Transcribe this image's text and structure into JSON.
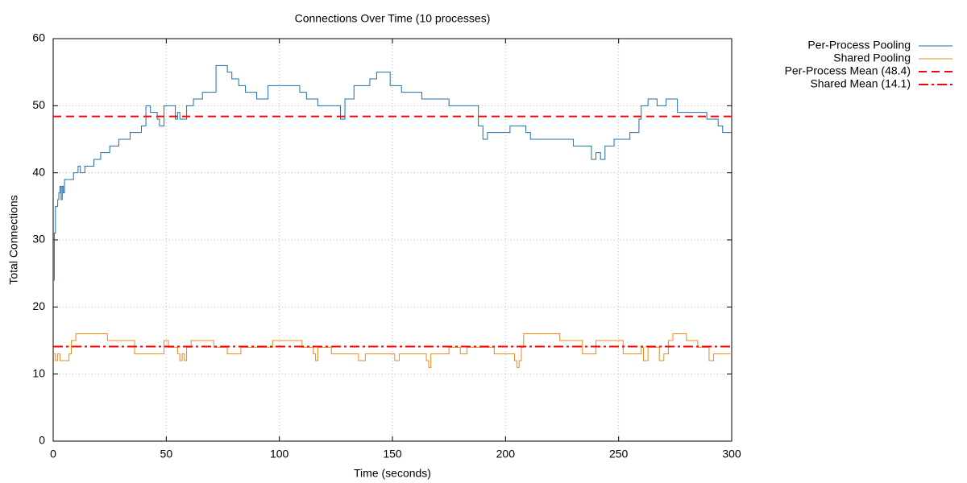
{
  "chart_data": {
    "type": "step",
    "title": "Connections Over Time (10 processes)",
    "x_label": "Time (seconds)",
    "y_label": "Total Connections",
    "xlim": [
      0,
      300
    ],
    "xticks": [
      0,
      50,
      100,
      150,
      200,
      250,
      300
    ],
    "ylim": [
      0,
      60
    ],
    "yticks": [
      0,
      10,
      20,
      30,
      40,
      50,
      60
    ],
    "grid": true,
    "legend": "outside-top-right",
    "series": [
      {
        "name": "Per-Process Pooling",
        "color": "#1f6fa8",
        "x": [
          0,
          0.5,
          1,
          2,
          2.5,
          3,
          3.5,
          4,
          4.5,
          5,
          8,
          9,
          10,
          11,
          12,
          14,
          17,
          18,
          21,
          25,
          29,
          34,
          39,
          41,
          43,
          46,
          47,
          49,
          54,
          55,
          56,
          59,
          62,
          64,
          66,
          70,
          72,
          77,
          79,
          82,
          85,
          90,
          95,
          105,
          109,
          112,
          117,
          122,
          127,
          129,
          133,
          140,
          143,
          146,
          149,
          154,
          163,
          175,
          188,
          190,
          192,
          199,
          202,
          205,
          209,
          211,
          219,
          230,
          238,
          240,
          242,
          244,
          248,
          252,
          255,
          259,
          260,
          263,
          267,
          271,
          276,
          289,
          294,
          296,
          300
        ],
        "values": [
          24,
          31,
          35,
          36,
          37,
          38,
          36,
          38,
          37,
          39,
          39,
          40,
          40,
          41,
          40,
          41,
          41,
          42,
          43,
          44,
          45,
          46,
          47,
          50,
          49,
          48,
          47,
          50,
          48,
          49,
          48,
          50,
          51,
          51,
          52,
          52,
          56,
          55,
          54,
          53,
          52,
          51,
          53,
          53,
          52,
          51,
          50,
          50,
          48,
          51,
          53,
          54,
          55,
          55,
          53,
          52,
          51,
          50,
          47,
          45,
          46,
          46,
          47,
          47,
          46,
          45,
          45,
          44,
          42,
          43,
          42,
          44,
          45,
          45,
          46,
          48,
          50,
          51,
          50,
          51,
          49,
          48,
          47,
          46,
          46
        ]
      },
      {
        "name": "Shared Pooling",
        "color": "#e8891c",
        "x": [
          0,
          1,
          2,
          3,
          4,
          7,
          8,
          10,
          24,
          36,
          48,
          49,
          51,
          55,
          56,
          57,
          58,
          59,
          61,
          70,
          71,
          77,
          83,
          88,
          97,
          110,
          115,
          116,
          117,
          123,
          135,
          138,
          150,
          151,
          153,
          165,
          166,
          167,
          175,
          180,
          183,
          195,
          204,
          205,
          206,
          207,
          208,
          224,
          234,
          240,
          252,
          260,
          261,
          263,
          268,
          270,
          272,
          274,
          280,
          285,
          290,
          292,
          295,
          300
        ],
        "values": [
          13,
          12,
          13,
          12,
          12,
          13,
          15,
          16,
          15,
          13,
          13,
          15,
          14,
          13,
          12,
          13,
          12,
          14,
          15,
          15,
          14,
          13,
          14,
          14,
          15,
          14,
          13,
          12,
          14,
          13,
          12,
          13,
          13,
          12,
          13,
          12,
          11,
          13,
          14,
          13,
          14,
          13,
          12,
          11,
          12,
          14,
          16,
          15,
          13,
          15,
          13,
          14,
          12,
          14,
          12,
          13,
          15,
          16,
          15,
          14,
          12,
          13,
          13,
          13
        ]
      }
    ],
    "reference_lines": [
      {
        "name": "Per-Process Mean (48.4)",
        "value": 48.4,
        "color": "#ff0000",
        "dash": "10,6"
      },
      {
        "name": "Shared Mean (14.1)",
        "value": 14.1,
        "color": "#ff0000",
        "dash": "12,4,3,4"
      }
    ]
  }
}
